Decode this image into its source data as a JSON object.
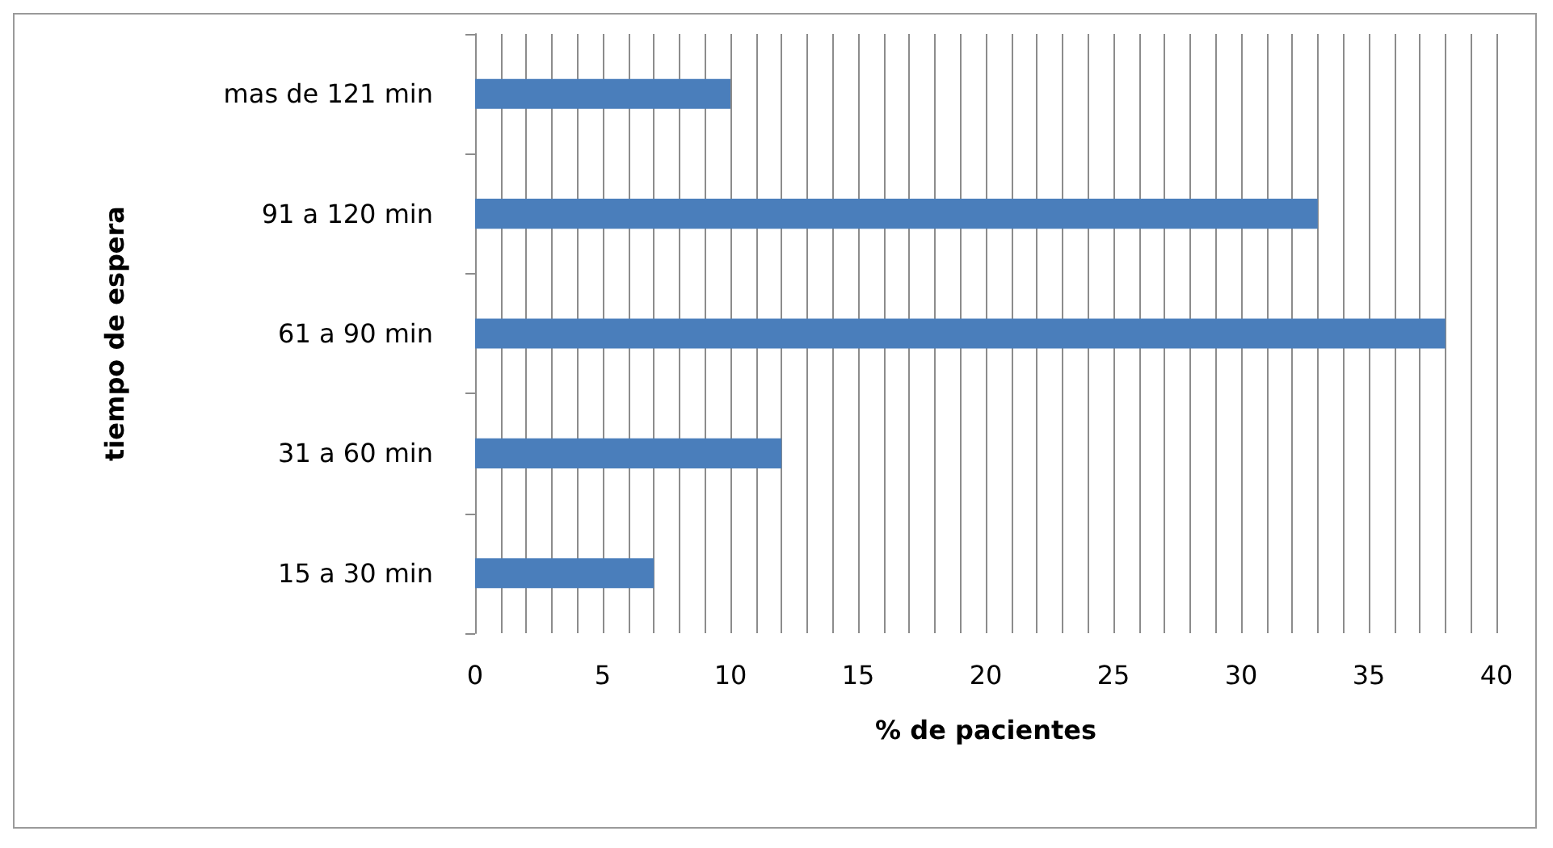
{
  "chart_data": {
    "type": "bar",
    "orientation": "horizontal",
    "xlabel": "% de pacientes",
    "ylabel": "tiempo de espera",
    "categories": [
      "mas de 121 min",
      "91 a 120 min",
      "61 a 90 min",
      "31 a 60 min",
      "15 a 30 min"
    ],
    "values": [
      10,
      33,
      38,
      12,
      7
    ],
    "color": "#4a7ebb",
    "xlim": [
      0,
      40
    ],
    "xticks": [
      0,
      {
        "value": 1,
        "label": null
      },
      {
        "value": 2,
        "label": null
      },
      {
        "value": 3,
        "label": null
      },
      {
        "value": 4,
        "label": null
      },
      5,
      {
        "value": 6,
        "label": null
      },
      {
        "value": 7,
        "label": null
      },
      {
        "value": 8,
        "label": null
      },
      {
        "value": 9,
        "label": null
      },
      10,
      {
        "value": 11,
        "label": null
      },
      {
        "value": 12,
        "label": null
      },
      {
        "value": 13,
        "label": null
      },
      {
        "value": 14,
        "label": null
      },
      15,
      {
        "value": 16,
        "label": null
      },
      {
        "value": 17,
        "label": null
      },
      {
        "value": 18,
        "label": null
      },
      {
        "value": 19,
        "label": null
      },
      20,
      {
        "value": 21,
        "label": null
      },
      {
        "value": 22,
        "label": null
      },
      {
        "value": 23,
        "label": null
      },
      {
        "value": 24,
        "label": null
      },
      25,
      {
        "value": 26,
        "label": null
      },
      {
        "value": 27,
        "label": null
      },
      {
        "value": 28,
        "label": null
      },
      {
        "value": 29,
        "label": null
      },
      30,
      {
        "value": 31,
        "label": null
      },
      {
        "value": 32,
        "label": null
      },
      {
        "value": 33,
        "label": null
      },
      {
        "value": 34,
        "label": null
      },
      35,
      {
        "value": 36,
        "label": null
      },
      {
        "value": 37,
        "label": null
      },
      {
        "value": 38,
        "label": null
      },
      {
        "value": 39,
        "label": null
      },
      40
    ],
    "grid": "x"
  }
}
